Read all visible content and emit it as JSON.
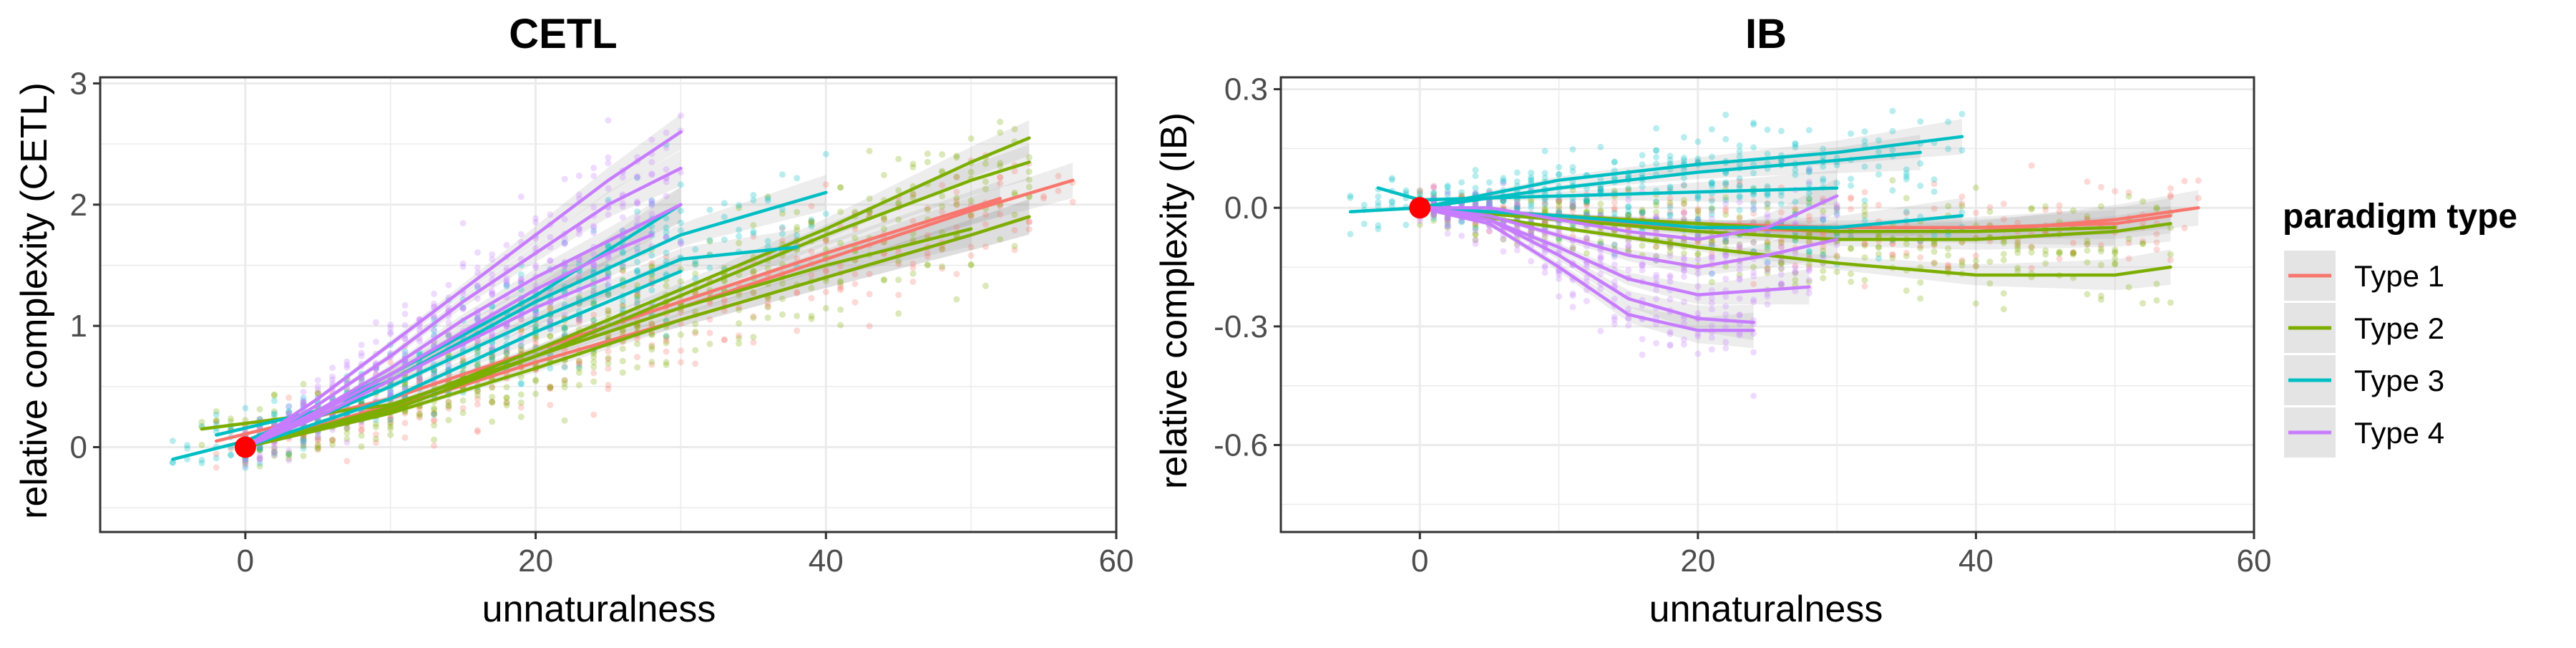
{
  "figure": {
    "legend": {
      "title": "paradigm type",
      "position": "right"
    }
  },
  "series_colors": {
    "Type 1": "#F8766D",
    "Type 2": "#7CAE00",
    "Type 3": "#00BFC4",
    "Type 4": "#C77CFF"
  },
  "reference_point": {
    "x": 0,
    "y": 0,
    "color": "#FF0000"
  },
  "chart_data": [
    {
      "type": "scatter",
      "title": "CETL",
      "xlabel": "unnaturalness",
      "ylabel": "relative complexity (CETL)",
      "xlim": [
        -10,
        60
      ],
      "ylim": [
        -0.7,
        3.05
      ],
      "xticks": [
        0,
        20,
        40,
        60
      ],
      "xtick_labels": [
        "0",
        "20",
        "40",
        "60"
      ],
      "yticks": [
        0,
        1,
        2,
        3
      ],
      "ytick_labels": [
        "0",
        "1",
        "2",
        "3"
      ],
      "grid": true,
      "series": [
        {
          "name": "Type 1",
          "trend_lines": [
            {
              "x": [
                0,
                10,
                20,
                30,
                40,
                50,
                57
              ],
              "y": [
                0.0,
                0.35,
                0.75,
                1.15,
                1.55,
                1.95,
                2.2
              ]
            },
            {
              "x": [
                0,
                10,
                20,
                30,
                40,
                50,
                54
              ],
              "y": [
                0.0,
                0.32,
                0.7,
                1.05,
                1.4,
                1.75,
                1.9
              ]
            },
            {
              "x": [
                -2,
                10,
                20,
                30,
                40,
                52
              ],
              "y": [
                0.05,
                0.4,
                0.8,
                1.2,
                1.6,
                2.05
              ]
            }
          ]
        },
        {
          "name": "Type 2",
          "trend_lines": [
            {
              "x": [
                0,
                10,
                20,
                30,
                40,
                50,
                54
              ],
              "y": [
                0.0,
                0.33,
                0.8,
                1.3,
                1.8,
                2.35,
                2.55
              ]
            },
            {
              "x": [
                0,
                10,
                20,
                30,
                40,
                50,
                54
              ],
              "y": [
                0.0,
                0.3,
                0.75,
                1.25,
                1.75,
                2.2,
                2.35
              ]
            },
            {
              "x": [
                0,
                10,
                20,
                30,
                40,
                50,
                54
              ],
              "y": [
                0.0,
                0.28,
                0.65,
                1.05,
                1.4,
                1.75,
                1.9
              ]
            },
            {
              "x": [
                -3,
                10,
                20,
                30,
                40,
                50
              ],
              "y": [
                0.15,
                0.35,
                0.75,
                1.15,
                1.5,
                1.8
              ]
            }
          ]
        },
        {
          "name": "Type 3",
          "trend_lines": [
            {
              "x": [
                -5,
                0,
                10,
                20,
                30,
                40
              ],
              "y": [
                -0.1,
                0.05,
                0.55,
                1.2,
                1.75,
                2.1
              ]
            },
            {
              "x": [
                0,
                10,
                20,
                30,
                38
              ],
              "y": [
                0.0,
                0.5,
                1.05,
                1.55,
                1.65
              ]
            },
            {
              "x": [
                -2,
                5,
                10,
                20,
                30
              ],
              "y": [
                0.1,
                0.3,
                0.6,
                1.25,
                2.0
              ]
            },
            {
              "x": [
                0,
                10,
                20,
                30
              ],
              "y": [
                0.0,
                0.4,
                0.95,
                1.45
              ]
            }
          ]
        },
        {
          "name": "Type 4",
          "trend_lines": [
            {
              "x": [
                0,
                5,
                10,
                15,
                20,
                25,
                30
              ],
              "y": [
                0.0,
                0.4,
                0.85,
                1.3,
                1.75,
                2.2,
                2.6
              ]
            },
            {
              "x": [
                0,
                5,
                10,
                15,
                20,
                25,
                30
              ],
              "y": [
                0.0,
                0.35,
                0.75,
                1.2,
                1.6,
                2.0,
                2.3
              ]
            },
            {
              "x": [
                0,
                5,
                10,
                15,
                20,
                25,
                30
              ],
              "y": [
                0.0,
                0.3,
                0.65,
                1.05,
                1.4,
                1.7,
                2.0
              ]
            },
            {
              "x": [
                0,
                5,
                10,
                15,
                20,
                25,
                28
              ],
              "y": [
                0.0,
                0.28,
                0.6,
                0.95,
                1.3,
                1.6,
                1.75
              ]
            },
            {
              "x": [
                0,
                5,
                10,
                15,
                20,
                25
              ],
              "y": [
                0.0,
                0.25,
                0.55,
                0.85,
                1.15,
                1.4
              ]
            }
          ]
        }
      ]
    },
    {
      "type": "scatter",
      "title": "IB",
      "xlabel": "unnaturalness",
      "ylabel": "relative complexity (IB)",
      "xlim": [
        -10,
        60
      ],
      "ylim": [
        -0.82,
        0.33
      ],
      "xticks": [
        0,
        20,
        40,
        60
      ],
      "xtick_labels": [
        "0",
        "20",
        "40",
        "60"
      ],
      "yticks": [
        0.3,
        0.0,
        -0.3,
        -0.6
      ],
      "ytick_labels": [
        "0.3",
        "0.0",
        "-0.3",
        "-0.6"
      ],
      "grid": true,
      "series": [
        {
          "name": "Type 1",
          "trend_lines": [
            {
              "x": [
                0,
                10,
                20,
                30,
                40,
                50,
                56
              ],
              "y": [
                0.0,
                -0.03,
                -0.05,
                -0.06,
                -0.06,
                -0.03,
                0.0
              ]
            },
            {
              "x": [
                0,
                10,
                20,
                30,
                40,
                50,
                54
              ],
              "y": [
                0.0,
                -0.02,
                -0.04,
                -0.05,
                -0.05,
                -0.04,
                -0.02
              ]
            }
          ]
        },
        {
          "name": "Type 2",
          "trend_lines": [
            {
              "x": [
                0,
                10,
                20,
                30,
                40,
                50,
                54
              ],
              "y": [
                0.0,
                -0.05,
                -0.1,
                -0.14,
                -0.17,
                -0.17,
                -0.15
              ]
            },
            {
              "x": [
                0,
                10,
                20,
                30,
                40,
                50,
                54
              ],
              "y": [
                0.0,
                -0.03,
                -0.06,
                -0.08,
                -0.08,
                -0.06,
                -0.04
              ]
            },
            {
              "x": [
                0,
                10,
                20,
                30,
                40,
                50
              ],
              "y": [
                0.0,
                -0.02,
                -0.04,
                -0.06,
                -0.06,
                -0.05
              ]
            }
          ]
        },
        {
          "name": "Type 3",
          "trend_lines": [
            {
              "x": [
                -5,
                0,
                10,
                20,
                30,
                39
              ],
              "y": [
                -0.01,
                0.0,
                0.07,
                0.11,
                0.14,
                0.18
              ]
            },
            {
              "x": [
                0,
                10,
                20,
                30,
                36
              ],
              "y": [
                0.0,
                0.05,
                0.09,
                0.12,
                0.14
              ]
            },
            {
              "x": [
                -3,
                0,
                10,
                20,
                30
              ],
              "y": [
                0.05,
                0.02,
                0.03,
                0.04,
                0.05
              ]
            },
            {
              "x": [
                0,
                10,
                20,
                30,
                39
              ],
              "y": [
                0.0,
                -0.02,
                -0.05,
                -0.05,
                -0.02
              ]
            }
          ]
        },
        {
          "name": "Type 4",
          "trend_lines": [
            {
              "x": [
                0,
                5,
                10,
                15,
                20,
                24
              ],
              "y": [
                0.0,
                -0.04,
                -0.15,
                -0.27,
                -0.31,
                -0.31
              ]
            },
            {
              "x": [
                0,
                5,
                10,
                15,
                20,
                24
              ],
              "y": [
                0.0,
                -0.03,
                -0.12,
                -0.23,
                -0.28,
                -0.29
              ]
            },
            {
              "x": [
                0,
                5,
                10,
                15,
                20,
                28
              ],
              "y": [
                0.0,
                -0.03,
                -0.1,
                -0.18,
                -0.22,
                -0.2
              ]
            },
            {
              "x": [
                0,
                5,
                10,
                15,
                20,
                25,
                30
              ],
              "y": [
                0.0,
                -0.02,
                -0.07,
                -0.12,
                -0.15,
                -0.12,
                -0.08
              ]
            },
            {
              "x": [
                0,
                5,
                10,
                15,
                20,
                25,
                30
              ],
              "y": [
                0.0,
                0.0,
                -0.03,
                -0.06,
                -0.08,
                -0.05,
                0.03
              ]
            }
          ]
        }
      ]
    }
  ]
}
